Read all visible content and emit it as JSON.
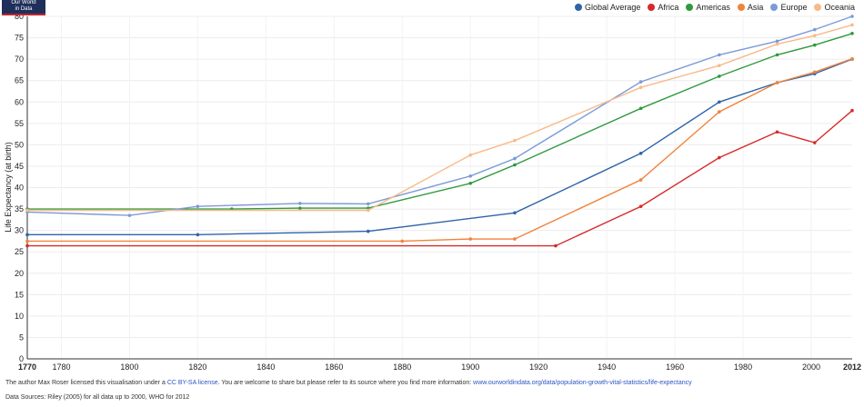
{
  "logo": {
    "line1": "Our World",
    "line2": "in Data"
  },
  "chart_data": {
    "type": "line",
    "title": "",
    "xlabel": "",
    "ylabel": "Life Expectancy (at birth)",
    "xlim": [
      1770,
      2012
    ],
    "ylim": [
      0,
      80
    ],
    "x_ticks": [
      1780,
      1800,
      1820,
      1840,
      1860,
      1880,
      1900,
      1920,
      1940,
      1960,
      1980,
      2000
    ],
    "x_edge_labels": [
      "1770",
      "2012"
    ],
    "y_ticks": [
      0,
      5,
      10,
      15,
      20,
      25,
      30,
      35,
      40,
      45,
      50,
      55,
      60,
      65,
      70,
      75,
      80
    ],
    "legend_position": "top-right",
    "series": [
      {
        "name": "Global Average",
        "color": "#2f64a8",
        "points": [
          [
            1770,
            29.0
          ],
          [
            1820,
            29.0
          ],
          [
            1870,
            29.8
          ],
          [
            1913,
            34.1
          ],
          [
            1950,
            48.0
          ],
          [
            1973,
            60.0
          ],
          [
            1990,
            64.5
          ],
          [
            2001,
            66.6
          ],
          [
            2012,
            70.0
          ]
        ]
      },
      {
        "name": "Africa",
        "color": "#d62a2a",
        "points": [
          [
            1770,
            26.4
          ],
          [
            1925,
            26.4
          ],
          [
            1950,
            35.6
          ],
          [
            1973,
            47.0
          ],
          [
            1990,
            53.0
          ],
          [
            2001,
            50.5
          ],
          [
            2012,
            58.0
          ]
        ]
      },
      {
        "name": "Americas",
        "color": "#2e9a3c",
        "points": [
          [
            1770,
            35.0
          ],
          [
            1830,
            35.0
          ],
          [
            1850,
            35.2
          ],
          [
            1870,
            35.2
          ],
          [
            1900,
            41.0
          ],
          [
            1913,
            45.3
          ],
          [
            1950,
            58.5
          ],
          [
            1973,
            66.0
          ],
          [
            1990,
            71.0
          ],
          [
            2001,
            73.3
          ],
          [
            2012,
            76.0
          ]
        ]
      },
      {
        "name": "Asia",
        "color": "#f0823c",
        "points": [
          [
            1770,
            27.5
          ],
          [
            1880,
            27.5
          ],
          [
            1900,
            28.0
          ],
          [
            1913,
            28.0
          ],
          [
            1950,
            41.8
          ],
          [
            1973,
            57.7
          ],
          [
            1990,
            64.5
          ],
          [
            2001,
            67.0
          ],
          [
            2012,
            70.1
          ]
        ]
      },
      {
        "name": "Europe",
        "color": "#7b9bd8",
        "points": [
          [
            1770,
            34.3
          ],
          [
            1800,
            33.5
          ],
          [
            1820,
            35.6
          ],
          [
            1850,
            36.3
          ],
          [
            1870,
            36.2
          ],
          [
            1900,
            42.7
          ],
          [
            1913,
            46.8
          ],
          [
            1950,
            64.7
          ],
          [
            1973,
            71.0
          ],
          [
            1990,
            74.2
          ],
          [
            2001,
            76.9
          ],
          [
            2012,
            80.0
          ]
        ]
      },
      {
        "name": "Oceania",
        "color": "#f9b98a",
        "points": [
          [
            1770,
            34.7
          ],
          [
            1870,
            34.7
          ],
          [
            1900,
            47.6
          ],
          [
            1913,
            51.0
          ],
          [
            1950,
            63.4
          ],
          [
            1973,
            68.5
          ],
          [
            1990,
            73.5
          ],
          [
            2001,
            75.5
          ],
          [
            2012,
            78.0
          ]
        ]
      }
    ]
  },
  "credit": {
    "prefix": "The author Max Roser licensed this visualisation under a ",
    "license_link": "CC BY-SA license",
    "middle": ". You are welcome to share but please refer to its source where you find more information: ",
    "source_link": "www.ourworldindata.org/data/population-growth-vital-statistics/life-expectancy"
  },
  "sources": "Data Sources: Riley (2005) for all data up to 2000, WHO for 2012"
}
